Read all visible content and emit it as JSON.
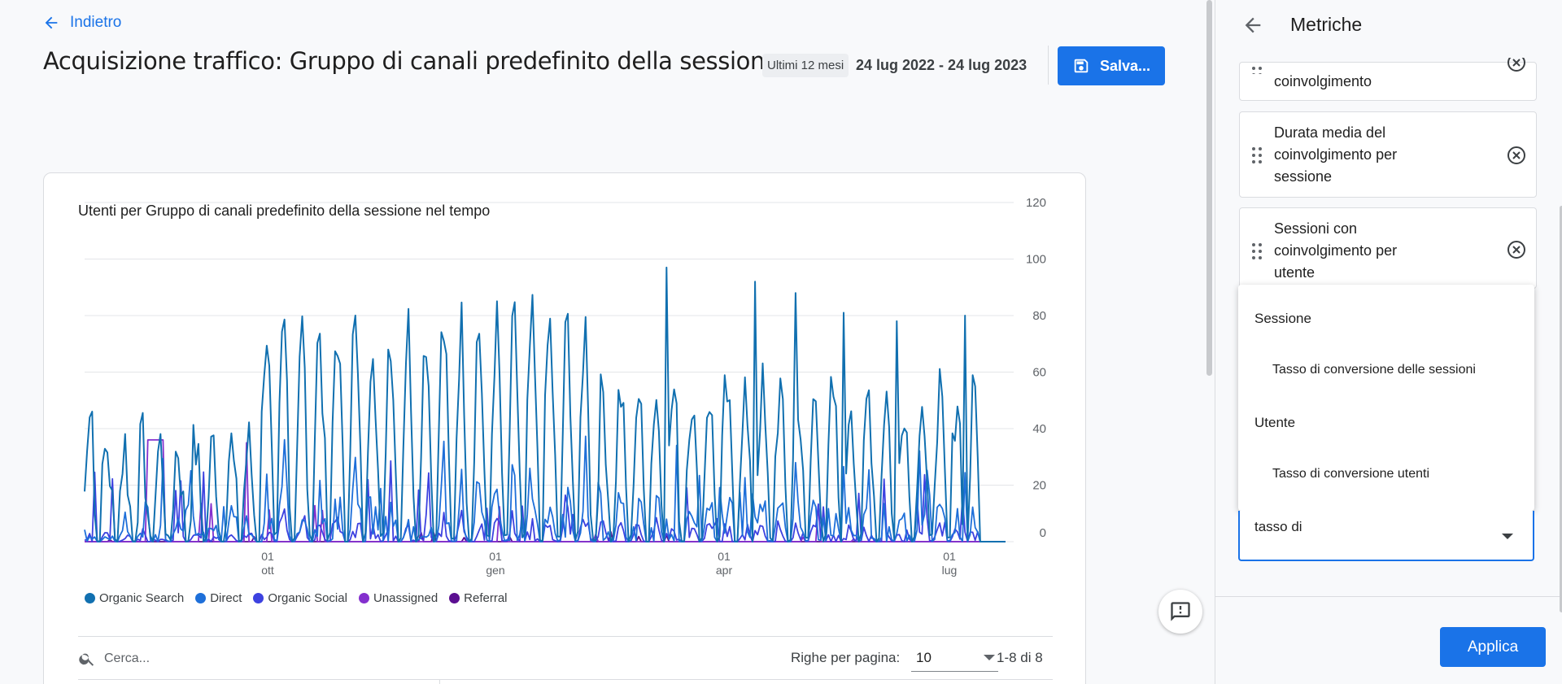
{
  "header": {
    "back_label": "Indietro",
    "title": "Acquisizione traffico: Gruppo di canali predefinito della sessione",
    "date_chip": "Ultimi 12 mesi",
    "date_range": "24 lug 2022 - 24 lug 2023",
    "save_label": "Salva..."
  },
  "card": {
    "search_placeholder": "Cerca...",
    "rows_label": "Righe per pagina:",
    "rows_value": "10",
    "page_count": "1-8 di 8"
  },
  "chart_data": {
    "type": "line",
    "title": "Utenti per Gruppo di canali predefinito della sessione nel tempo",
    "ylim": [
      0,
      120
    ],
    "yticks": [
      "0",
      "20",
      "40",
      "60",
      "80",
      "100",
      "120"
    ],
    "xticks": [
      {
        "day": "01",
        "month": "ott"
      },
      {
        "day": "01",
        "month": "gen"
      },
      {
        "day": "01",
        "month": "apr"
      },
      {
        "day": "01",
        "month": "lug"
      }
    ],
    "series": [
      {
        "name": "Organic Search",
        "color": "#1170b0"
      },
      {
        "name": "Direct",
        "color": "#1e6fd9"
      },
      {
        "name": "Organic Social",
        "color": "#3d42e0"
      },
      {
        "name": "Unassigned",
        "color": "#8430ce"
      },
      {
        "name": "Referral",
        "color": "#5b0f91"
      }
    ],
    "legend_placement": "bottom-left",
    "grid": true
  },
  "panel": {
    "title": "Metriche",
    "metrics": [
      {
        "lines": [
          "coinvolgimento"
        ]
      },
      {
        "lines": [
          "Durata media del",
          "coinvolgimento per",
          "sessione"
        ]
      },
      {
        "lines": [
          "Sessioni con",
          "coinvolgimento per",
          "utente"
        ]
      }
    ],
    "dropdown": {
      "group1": "Sessione",
      "option1": "Tasso di conversione delle sessioni",
      "group2": "Utente",
      "option2": "Tasso di conversione utenti"
    },
    "search_value": "tasso di",
    "apply_label": "Applica"
  }
}
